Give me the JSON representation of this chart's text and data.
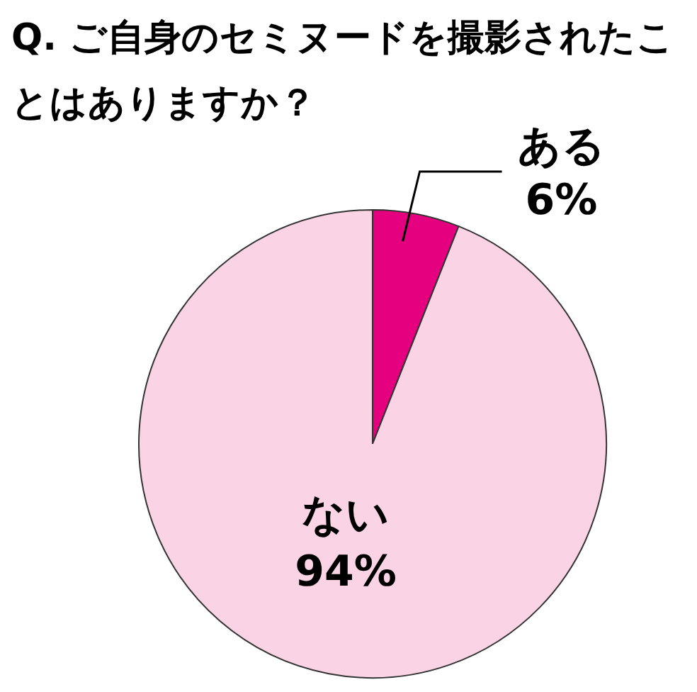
{
  "chart_data": {
    "type": "pie",
    "title": "Q. ご自身のセミヌードを撮影されたことはありますか？",
    "categories": [
      "ある",
      "ない"
    ],
    "values": [
      6,
      94
    ],
    "value_labels": [
      "6%",
      "94%"
    ],
    "colors": [
      "#e4007f",
      "#fad4e4"
    ],
    "legend": false
  }
}
